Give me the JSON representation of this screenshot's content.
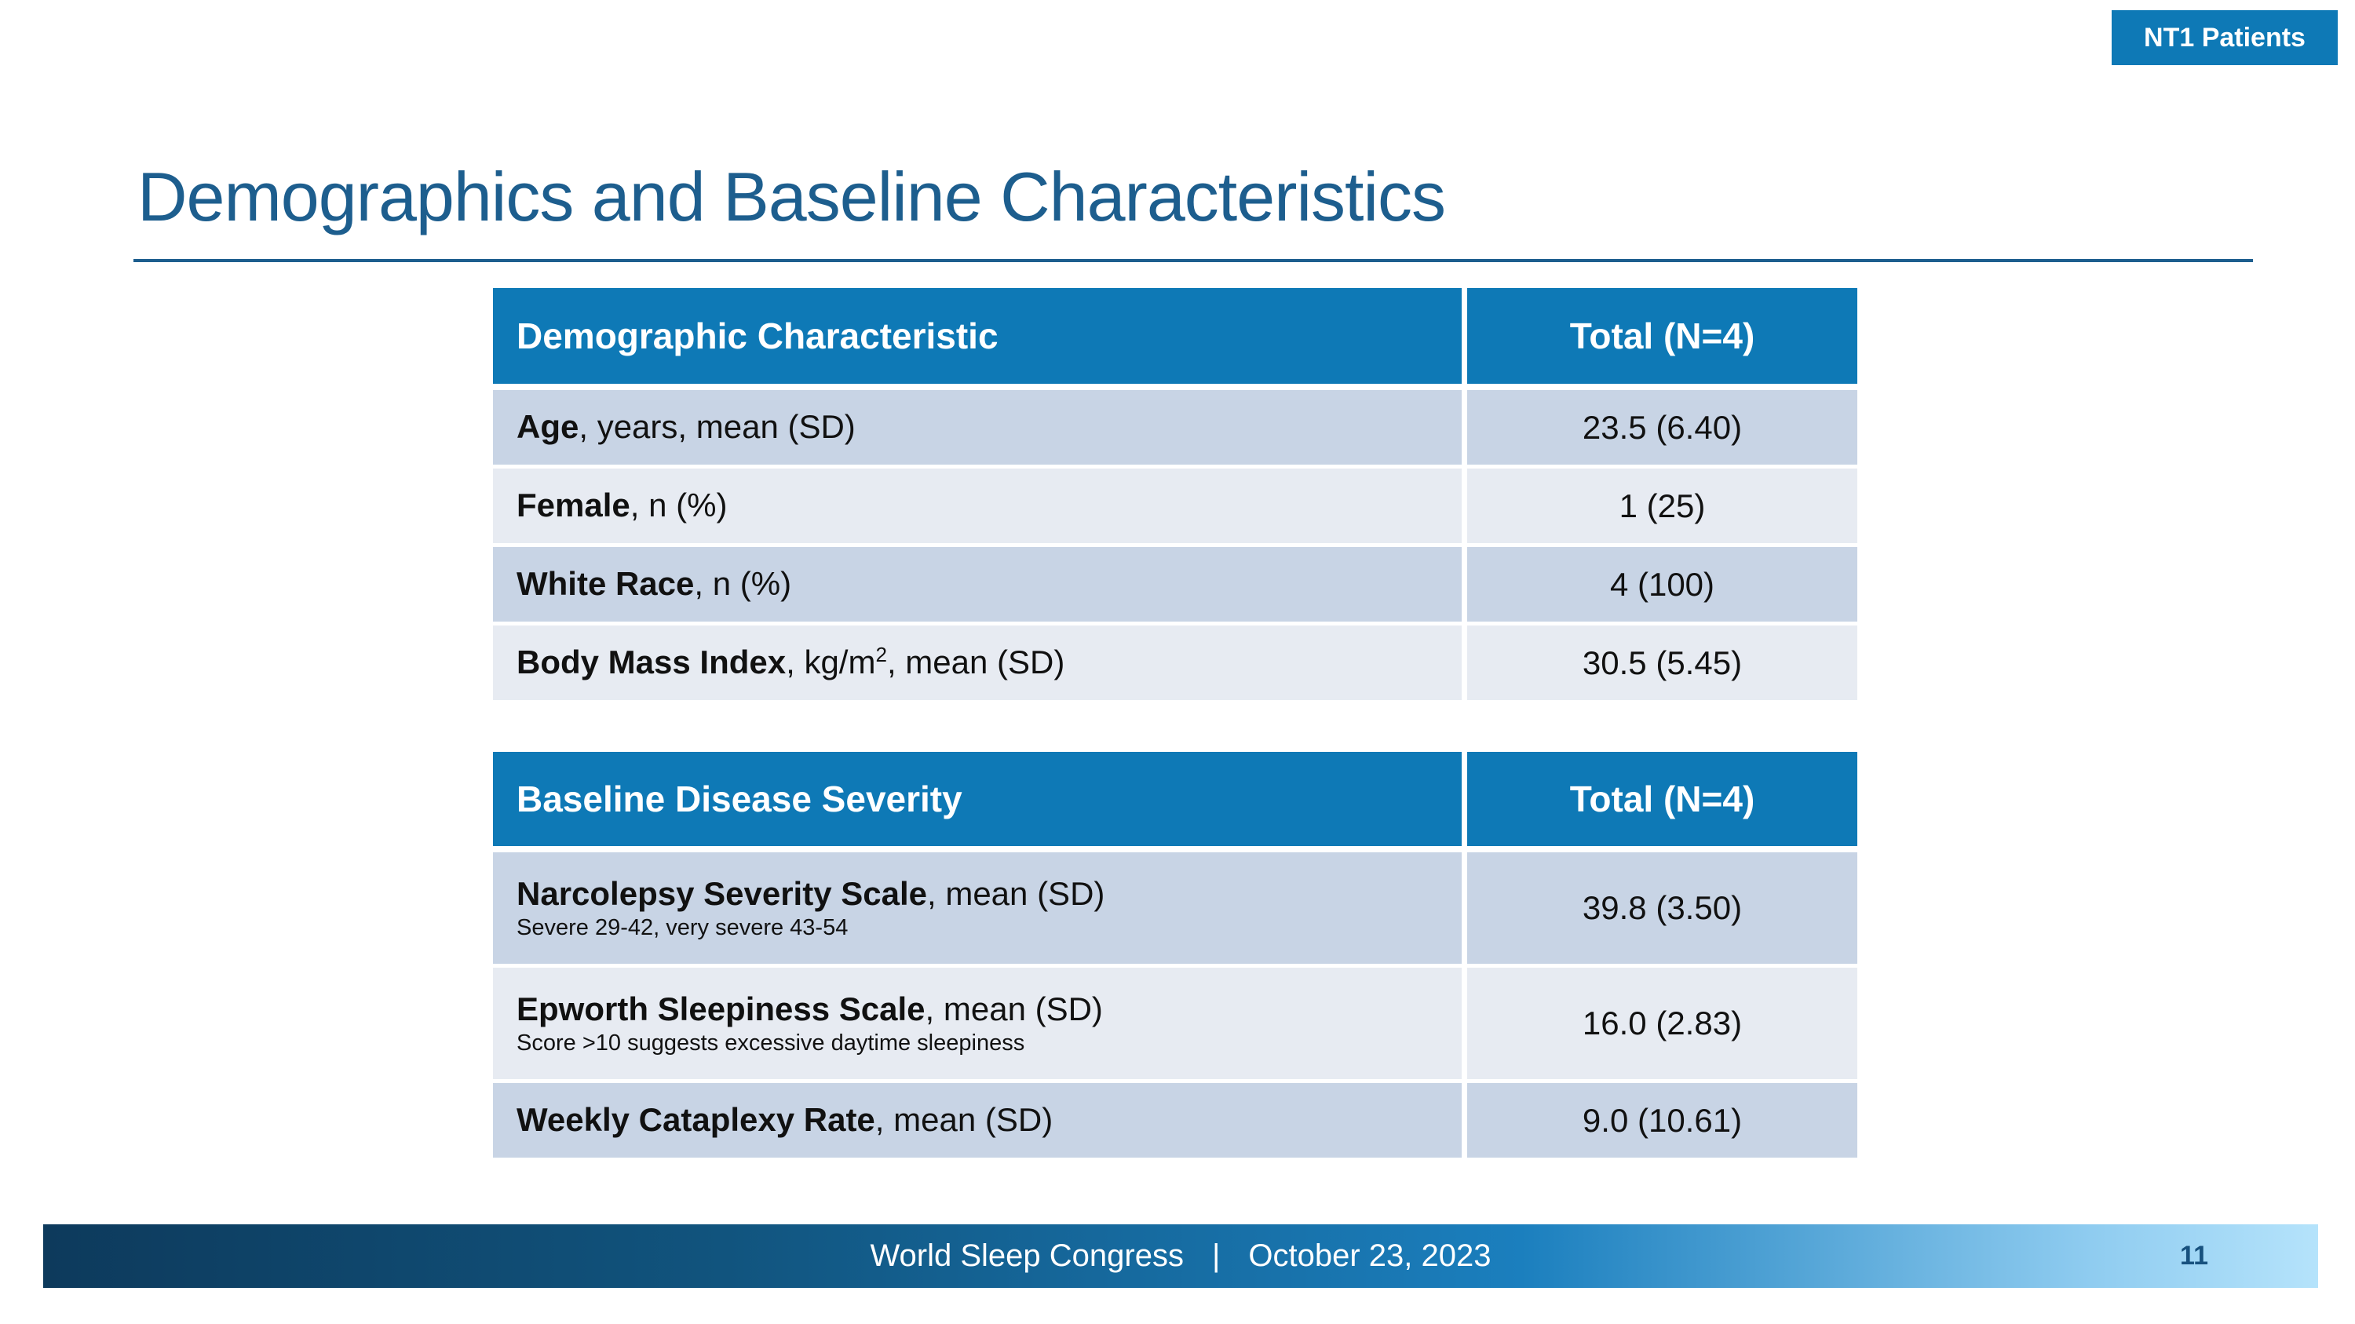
{
  "slide": {
    "badge": "NT1 Patients",
    "title": "Demographics and Baseline Characteristics",
    "footer": {
      "conference": "World Sleep Congress",
      "separator": "|",
      "date": "October 23, 2023",
      "page_number": "11"
    }
  },
  "table1": {
    "header": {
      "characteristic": "Demographic Characteristic",
      "total": "Total (N=4)"
    },
    "rows": [
      {
        "bold": "Age",
        "rest": ", years, mean (SD)",
        "value": "23.5 (6.40)"
      },
      {
        "bold": "Female",
        "rest": ", n (%)",
        "value": "1 (25)"
      },
      {
        "bold": "White Race",
        "rest": ", n (%)",
        "value": "4 (100)"
      },
      {
        "bold": "Body Mass Index",
        "rest": ", kg/m",
        "sup": "2",
        "rest2": ", mean (SD)",
        "value": "30.5 (5.45)"
      }
    ]
  },
  "table2": {
    "header": {
      "characteristic": "Baseline Disease Severity",
      "total": "Total (N=4)"
    },
    "rows": [
      {
        "bold": "Narcolepsy Severity Scale",
        "rest": ", mean (SD)",
        "note": "Severe 29-42, very severe 43-54",
        "value": "39.8 (3.50)"
      },
      {
        "bold": "Epworth Sleepiness Scale",
        "rest": ", mean (SD)",
        "note": "Score >10 suggests excessive daytime sleepiness",
        "value": "16.0 (2.83)"
      },
      {
        "bold": "Weekly Cataplexy Rate",
        "rest": ", mean (SD)",
        "value": "9.0 (10.61)"
      }
    ]
  },
  "colors": {
    "header_blue": "#0E79B6",
    "badge_blue": "#0E79B6",
    "row_dark": "#C8D4E5",
    "row_light": "#E7EBF2",
    "title_blue": "#1D5E8E",
    "footer_dark": "#0D3A5C",
    "footer_light": "#B5E3FB",
    "page_number_blue": "#17517E"
  }
}
